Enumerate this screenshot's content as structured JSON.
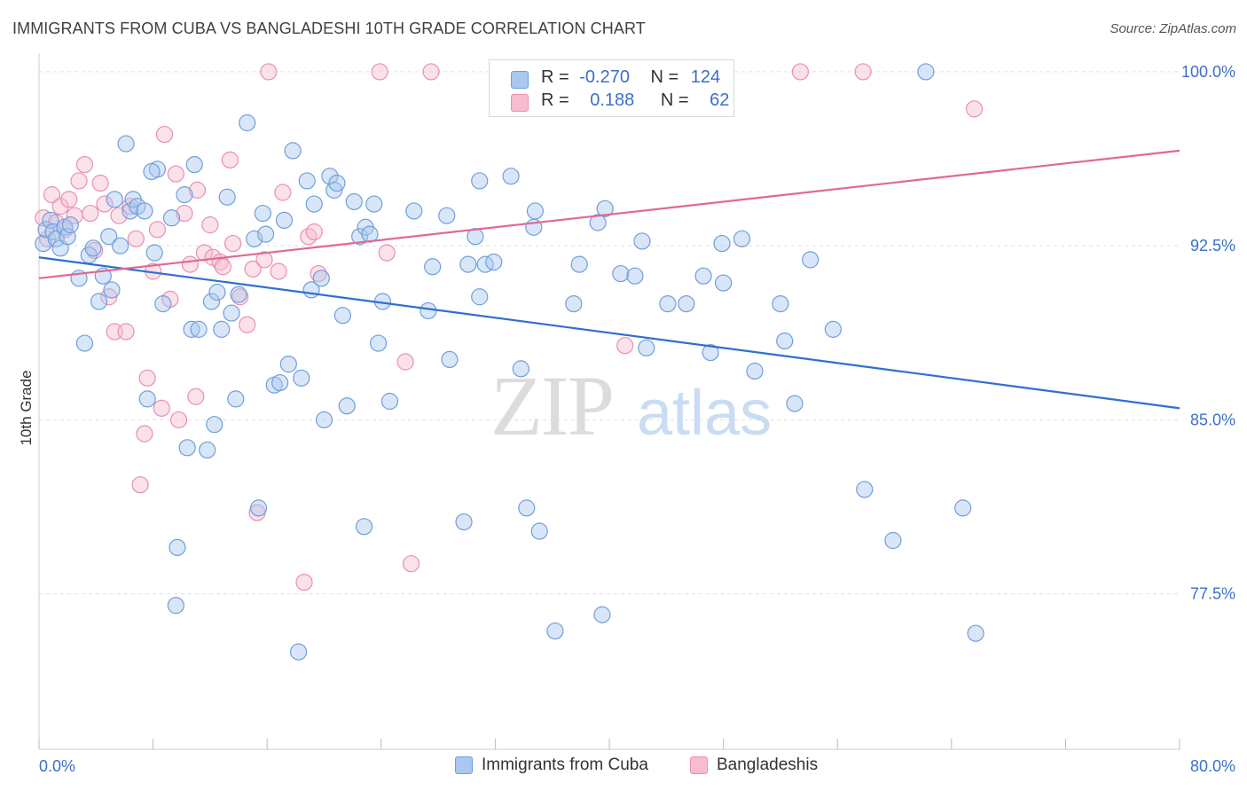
{
  "header": {
    "title": "IMMIGRANTS FROM CUBA VS BANGLADESHI 10TH GRADE CORRELATION CHART",
    "source": "Source: ZipAtlas.com"
  },
  "legend": {
    "series1": {
      "r_label": "R =",
      "r_value": "-0.270",
      "n_label": "N =",
      "n_value": "124"
    },
    "series2": {
      "r_label": "R =",
      "r_value": "0.188",
      "n_label": "N =",
      "n_value": "62"
    }
  },
  "bottom_legend": {
    "series1": "Immigrants from Cuba",
    "series2": "Bangladeshis"
  },
  "watermark": {
    "zip": "ZIP",
    "atlas": "atlas"
  },
  "colors": {
    "blue_fill": "#a9c8f0",
    "blue_stroke": "#6f9fdc",
    "blue_line": "#2f6fd0",
    "pink_fill": "#f7bcd0",
    "pink_stroke": "#eb8fb0",
    "pink_line": "#e06896",
    "axis_label": "#3b6fc9",
    "grid": "#e0e0e0"
  },
  "chart_data": {
    "type": "scatter",
    "title": "IMMIGRANTS FROM CUBA VS BANGLADESHI 10TH GRADE CORRELATION CHART",
    "xlabel": "",
    "ylabel": "10th Grade",
    "xlim": [
      0,
      80
    ],
    "ylim": [
      70.8,
      100.8
    ],
    "x_tick_labels": [
      "0.0%",
      "80.0%"
    ],
    "y_ticks": [
      77.5,
      85.0,
      92.5,
      100.0
    ],
    "y_tick_labels": [
      "77.5%",
      "85.0%",
      "92.5%",
      "100.0%"
    ],
    "grid": true,
    "legend_position": "top-center",
    "series": [
      {
        "name": "Immigrants from Cuba",
        "trend": {
          "x": [
            0,
            80
          ],
          "y": [
            92.0,
            85.5
          ]
        },
        "points": [
          [
            0.3,
            92.6
          ],
          [
            0.5,
            93.2
          ],
          [
            0.8,
            93.6
          ],
          [
            1.0,
            93.1
          ],
          [
            1.2,
            92.8
          ],
          [
            1.5,
            92.4
          ],
          [
            1.8,
            93.3
          ],
          [
            2.0,
            92.9
          ],
          [
            2.2,
            93.4
          ],
          [
            2.8,
            91.1
          ],
          [
            3.2,
            88.3
          ],
          [
            3.5,
            92.1
          ],
          [
            3.8,
            92.4
          ],
          [
            4.2,
            90.1
          ],
          [
            4.5,
            91.2
          ],
          [
            4.9,
            92.9
          ],
          [
            5.1,
            90.6
          ],
          [
            5.3,
            94.5
          ],
          [
            5.7,
            92.5
          ],
          [
            6.1,
            96.9
          ],
          [
            6.4,
            94.0
          ],
          [
            6.6,
            94.5
          ],
          [
            6.9,
            94.2
          ],
          [
            7.4,
            94.0
          ],
          [
            7.6,
            85.9
          ],
          [
            8.1,
            92.2
          ],
          [
            8.3,
            95.8
          ],
          [
            8.7,
            90.0
          ],
          [
            7.9,
            95.7
          ],
          [
            9.3,
            93.7
          ],
          [
            9.7,
            79.5
          ],
          [
            9.6,
            77.0
          ],
          [
            10.2,
            94.7
          ],
          [
            10.4,
            83.8
          ],
          [
            10.7,
            88.9
          ],
          [
            10.9,
            96.0
          ],
          [
            11.2,
            88.9
          ],
          [
            11.8,
            83.7
          ],
          [
            12.1,
            90.1
          ],
          [
            12.3,
            84.8
          ],
          [
            12.5,
            90.5
          ],
          [
            12.8,
            88.9
          ],
          [
            13.2,
            94.6
          ],
          [
            13.5,
            89.6
          ],
          [
            13.8,
            85.9
          ],
          [
            14.0,
            90.4
          ],
          [
            14.6,
            97.8
          ],
          [
            15.1,
            92.8
          ],
          [
            15.4,
            81.2
          ],
          [
            15.7,
            93.9
          ],
          [
            15.9,
            93.0
          ],
          [
            16.5,
            86.5
          ],
          [
            16.9,
            86.6
          ],
          [
            17.2,
            93.6
          ],
          [
            17.5,
            87.4
          ],
          [
            17.8,
            96.6
          ],
          [
            18.2,
            75.0
          ],
          [
            18.4,
            86.8
          ],
          [
            18.8,
            95.3
          ],
          [
            19.1,
            90.6
          ],
          [
            19.3,
            94.3
          ],
          [
            19.8,
            91.1
          ],
          [
            20.0,
            85.0
          ],
          [
            20.4,
            95.5
          ],
          [
            20.7,
            94.9
          ],
          [
            20.9,
            95.2
          ],
          [
            21.3,
            89.5
          ],
          [
            21.6,
            85.6
          ],
          [
            22.1,
            94.4
          ],
          [
            22.5,
            92.9
          ],
          [
            22.8,
            80.4
          ],
          [
            22.9,
            93.3
          ],
          [
            23.2,
            93.0
          ],
          [
            23.5,
            94.3
          ],
          [
            23.8,
            88.3
          ],
          [
            24.1,
            90.1
          ],
          [
            24.6,
            85.8
          ],
          [
            26.3,
            94.0
          ],
          [
            27.3,
            89.7
          ],
          [
            27.6,
            91.6
          ],
          [
            28.6,
            93.8
          ],
          [
            28.8,
            87.6
          ],
          [
            29.8,
            80.6
          ],
          [
            30.1,
            91.7
          ],
          [
            30.6,
            92.9
          ],
          [
            30.9,
            90.3
          ],
          [
            30.9,
            95.3
          ],
          [
            31.3,
            91.7
          ],
          [
            31.9,
            91.8
          ],
          [
            33.1,
            95.5
          ],
          [
            33.8,
            87.2
          ],
          [
            34.2,
            81.2
          ],
          [
            34.7,
            93.3
          ],
          [
            35.1,
            80.2
          ],
          [
            34.8,
            94.0
          ],
          [
            36.2,
            75.9
          ],
          [
            37.5,
            90.0
          ],
          [
            37.9,
            91.7
          ],
          [
            39.2,
            93.5
          ],
          [
            39.5,
            76.6
          ],
          [
            39.7,
            94.1
          ],
          [
            40.8,
            91.3
          ],
          [
            41.8,
            91.2
          ],
          [
            42.3,
            92.7
          ],
          [
            42.6,
            88.1
          ],
          [
            44.1,
            90.0
          ],
          [
            45.4,
            90.0
          ],
          [
            46.6,
            91.2
          ],
          [
            47.1,
            87.9
          ],
          [
            47.9,
            92.6
          ],
          [
            48.0,
            90.9
          ],
          [
            49.3,
            92.8
          ],
          [
            50.2,
            87.1
          ],
          [
            52.0,
            90.0
          ],
          [
            52.3,
            88.4
          ],
          [
            53.0,
            85.7
          ],
          [
            54.1,
            91.9
          ],
          [
            55.7,
            88.9
          ],
          [
            57.9,
            82.0
          ],
          [
            59.9,
            79.8
          ],
          [
            62.2,
            100.0
          ],
          [
            64.8,
            81.2
          ],
          [
            65.7,
            75.8
          ]
        ]
      },
      {
        "name": "Bangladeshis",
        "trend": {
          "x": [
            0,
            80
          ],
          "y": [
            91.1,
            96.6
          ]
        },
        "points": [
          [
            0.3,
            93.7
          ],
          [
            0.6,
            92.8
          ],
          [
            0.9,
            94.7
          ],
          [
            1.2,
            93.5
          ],
          [
            1.5,
            94.2
          ],
          [
            1.8,
            93.2
          ],
          [
            2.1,
            94.5
          ],
          [
            2.5,
            93.8
          ],
          [
            2.8,
            95.3
          ],
          [
            3.2,
            96.0
          ],
          [
            3.6,
            93.9
          ],
          [
            3.9,
            92.3
          ],
          [
            4.3,
            95.2
          ],
          [
            4.6,
            94.3
          ],
          [
            4.9,
            90.3
          ],
          [
            5.3,
            88.8
          ],
          [
            5.6,
            93.8
          ],
          [
            6.1,
            88.8
          ],
          [
            6.4,
            94.2
          ],
          [
            6.8,
            92.8
          ],
          [
            7.1,
            82.2
          ],
          [
            7.4,
            84.4
          ],
          [
            7.6,
            86.8
          ],
          [
            8.0,
            91.4
          ],
          [
            8.3,
            93.2
          ],
          [
            8.6,
            85.5
          ],
          [
            8.8,
            97.3
          ],
          [
            9.2,
            90.2
          ],
          [
            9.6,
            95.6
          ],
          [
            9.8,
            85.0
          ],
          [
            10.2,
            93.9
          ],
          [
            10.6,
            91.7
          ],
          [
            11.0,
            86.0
          ],
          [
            11.1,
            94.9
          ],
          [
            11.6,
            92.2
          ],
          [
            12.0,
            93.4
          ],
          [
            12.2,
            92.0
          ],
          [
            12.7,
            91.8
          ],
          [
            12.9,
            91.6
          ],
          [
            13.4,
            96.2
          ],
          [
            13.6,
            92.6
          ],
          [
            14.1,
            90.3
          ],
          [
            14.6,
            89.1
          ],
          [
            15.0,
            91.5
          ],
          [
            15.3,
            81.0
          ],
          [
            15.8,
            91.9
          ],
          [
            16.1,
            100.0
          ],
          [
            16.8,
            91.4
          ],
          [
            17.1,
            94.8
          ],
          [
            18.6,
            78.0
          ],
          [
            18.9,
            92.9
          ],
          [
            19.3,
            93.1
          ],
          [
            19.6,
            91.3
          ],
          [
            23.9,
            100.0
          ],
          [
            24.4,
            92.2
          ],
          [
            25.7,
            87.5
          ],
          [
            26.1,
            78.8
          ],
          [
            27.5,
            100.0
          ],
          [
            41.1,
            88.2
          ],
          [
            53.4,
            100.0
          ],
          [
            57.8,
            100.0
          ],
          [
            65.6,
            98.4
          ]
        ]
      }
    ]
  }
}
